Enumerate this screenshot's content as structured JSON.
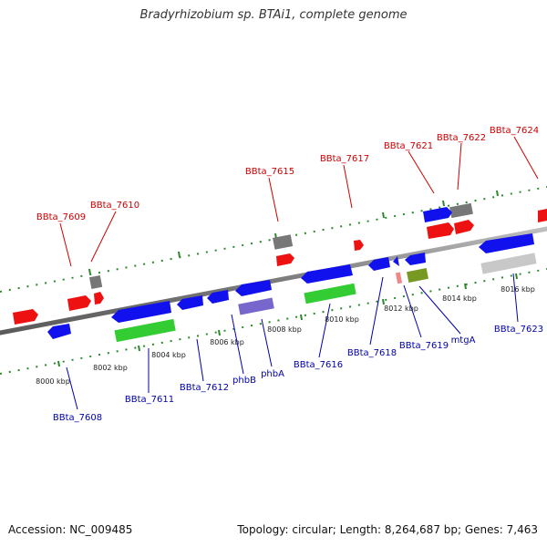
{
  "title": "Bradyrhizobium sp. BTAi1, complete genome",
  "footer": {
    "accession": "Accession: NC_009485",
    "summary": "Topology: circular; Length: 8,264,687 bp; Genes: 7,463"
  },
  "colors": {
    "backbone": "#8a8a8a",
    "forward_label": "#cc0000",
    "reverse_label": "#0000aa",
    "tick_forward": "#2a8a2a",
    "tick_reverse": "#2a8a2a",
    "red": "#ee1111",
    "blue": "#1111ee",
    "green": "#33cc33",
    "gray": "#777777",
    "lightgray": "#c8c8c8",
    "purple": "#7766cc",
    "olive": "#779922",
    "pink": "#ee8888"
  },
  "scale_labels": [
    "8000 kbp",
    "8002 kbp",
    "8004 kbp",
    "8006 kbp",
    "8008 kbp",
    "8010 kbp",
    "8012 kbp",
    "8014 kbp",
    "8016 kbp"
  ],
  "forward_labels": [
    "BBta_7609",
    "BBta_7610",
    "BBta_7615",
    "BBta_7617",
    "BBta_7621",
    "BBta_7622",
    "BBta_7624"
  ],
  "reverse_labels": [
    "BBta_7608",
    "BBta_7611",
    "BBta_7612",
    "phbB",
    "phbA",
    "BBta_7616",
    "BBta_7618",
    "BBta_7619",
    "mtgA",
    "BBta_7623"
  ]
}
